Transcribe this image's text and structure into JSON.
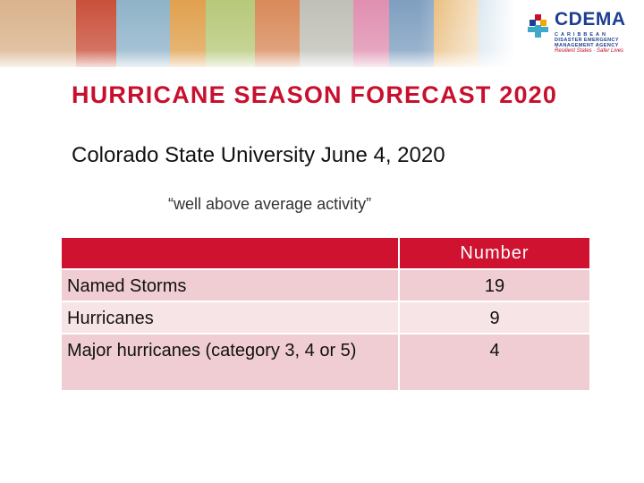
{
  "logo": {
    "name": "CDEMA",
    "lines": [
      "CARIBBEAN",
      "DISASTER EMERGENCY",
      "MANAGEMENT AGENCY"
    ],
    "tagline": "Resilient States · Safer Lives"
  },
  "header": {
    "title": "HURRICANE SEASON FORECAST 2020",
    "subtitle": "Colorado State University June 4, 2020",
    "quote": "“well above average activity”"
  },
  "table": {
    "columns": [
      "Number"
    ],
    "rows": [
      [
        "Named Storms",
        19
      ],
      [
        "Hurricanes",
        9
      ],
      [
        "Major hurricanes (category 3, 4 or 5)",
        4
      ]
    ]
  }
}
